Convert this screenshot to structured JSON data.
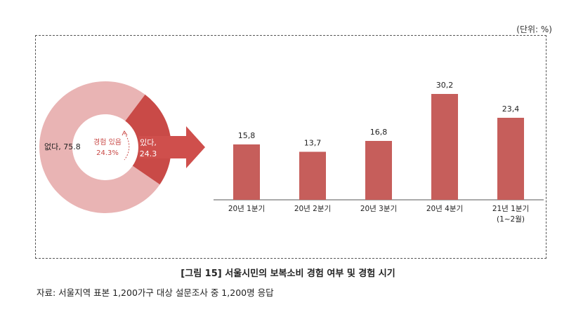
{
  "unit_label": "(단위: %)",
  "caption": "[그림 15] 서울시민의 보복소비 경험 여부 및 경험 시기",
  "source": "자료: 서울지역 표본 1,200가구 대상 설문조사 중 1,200명 응답",
  "colors": {
    "bar": "#c65e5b",
    "donut_light": "#e9b4b4",
    "donut_dark": "#c94a47",
    "arrow": "#cf4f4c"
  },
  "chart_data": [
    {
      "type": "pie",
      "title": "",
      "center_label": "경험 있음",
      "center_value": "24.3%",
      "slices": [
        {
          "label": "없다, 75.8",
          "value": 75.8
        },
        {
          "label": "있다,",
          "label2": "24.3",
          "value": 24.3
        }
      ]
    },
    {
      "type": "bar",
      "title": "",
      "categories": [
        "20년 1분기",
        "20년 2분기",
        "20년 3분기",
        "20년 4분기",
        "21년 1분기"
      ],
      "category_sublabels": [
        "",
        "",
        "",
        "",
        "(1~2월)"
      ],
      "values": [
        15.8,
        13.7,
        16.8,
        30.2,
        23.4
      ],
      "value_labels": [
        "15,8",
        "13,7",
        "16,8",
        "30,2",
        "23,4"
      ],
      "ylim": [
        0,
        34
      ]
    }
  ]
}
